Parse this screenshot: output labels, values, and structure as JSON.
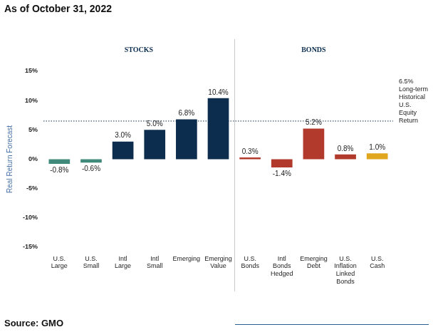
{
  "chart_data": {
    "type": "bar",
    "title": "As of October 31, 2022",
    "source": "Source: GMO",
    "y_label": "Real Return Forecast",
    "categories": [
      "U.S. Large",
      "U.S. Small",
      "Intl Large",
      "Intl Small",
      "Emerging",
      "Emerging Value",
      "U.S. Bonds",
      "Intl Bonds Hedged",
      "Emerging Debt",
      "U.S. Inflation Linked Bonds",
      "U.S. Cash"
    ],
    "values": [
      -0.8,
      -0.6,
      3.0,
      5.0,
      6.8,
      10.4,
      0.3,
      -1.4,
      5.2,
      0.8,
      1.0
    ],
    "value_labels": [
      "-0.8%",
      "-0.6%",
      "3.0%",
      "5.0%",
      "6.8%",
      "10.4%",
      "0.3%",
      "-1.4%",
      "5.2%",
      "0.8%",
      "1.0%"
    ],
    "colors": [
      "#3f8a7a",
      "#3f8a7a",
      "#0c2d4e",
      "#0c2d4e",
      "#0c2d4e",
      "#0c2d4e",
      "#b23a2c",
      "#b23a2c",
      "#b23a2c",
      "#b23a2c",
      "#dfa61e"
    ],
    "groups": [
      {
        "label": "STOCKS",
        "categories": [
          "U.S. Large",
          "U.S. Small",
          "Intl Large",
          "Intl Small",
          "Emerging",
          "Emerging Value"
        ]
      },
      {
        "label": "BONDS",
        "categories": [
          "U.S. Bonds",
          "Intl Bonds Hedged",
          "Emerging Debt",
          "U.S. Inflation Linked Bonds",
          "U.S. Cash"
        ]
      }
    ],
    "reference_line": {
      "value": 6.5,
      "label": "6.5% Long-term Historical U.S. Equity Return"
    },
    "ylim": [
      -15,
      15
    ],
    "yticks": [
      {
        "value": -15,
        "label": "-15%"
      },
      {
        "value": -10,
        "label": "-10%"
      },
      {
        "value": -5,
        "label": "-5%"
      },
      {
        "value": 0,
        "label": "0%"
      },
      {
        "value": 5,
        "label": "5%"
      },
      {
        "value": 10,
        "label": "10%"
      },
      {
        "value": 15,
        "label": "15%"
      }
    ],
    "grid": false,
    "data_labels": true
  }
}
